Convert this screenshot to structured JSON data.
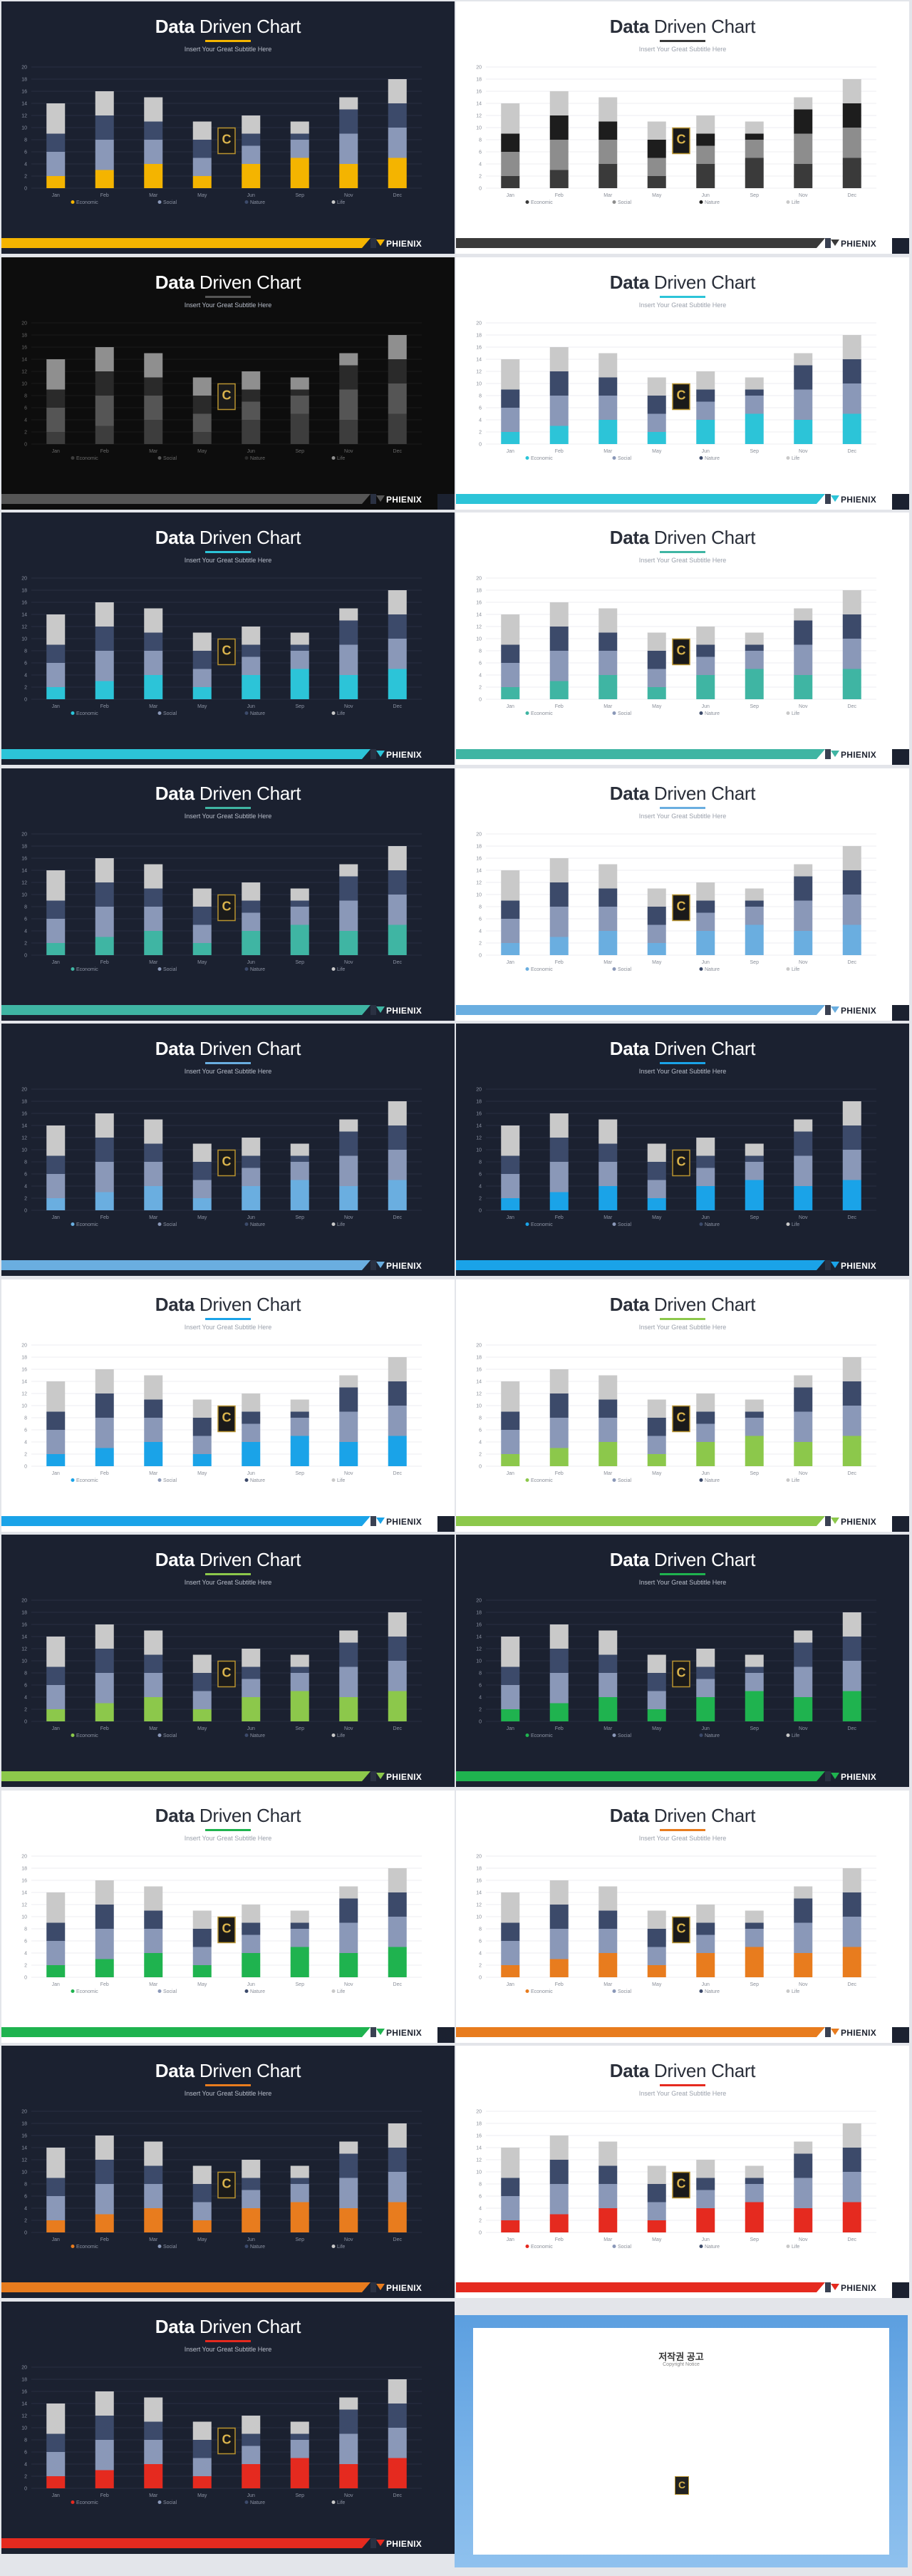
{
  "title_bold": "Data",
  "title_thin": "Driven Chart",
  "subtitle": "Insert Your Great Subtitle Here",
  "brand": "PHIENIX",
  "page_marker": "4",
  "logo_letter": "C",
  "chart_data": {
    "type": "bar",
    "categories": [
      "Jan",
      "Feb",
      "Mar",
      "May",
      "Jun",
      "Sep",
      "Nov",
      "Dec"
    ],
    "yticks": [
      0,
      2,
      4,
      6,
      8,
      10,
      12,
      14,
      16,
      18,
      20
    ],
    "ylim": [
      0,
      20
    ],
    "series": [
      {
        "name": "Economic",
        "values": [
          2,
          3,
          4,
          2,
          4,
          5,
          4,
          5
        ]
      },
      {
        "name": "Social",
        "values": [
          4,
          5,
          4,
          3,
          3,
          3,
          5,
          5
        ]
      },
      {
        "name": "Nature",
        "values": [
          3,
          4,
          3,
          3,
          2,
          1,
          4,
          4
        ]
      },
      {
        "name": "Life",
        "values": [
          5,
          4,
          4,
          3,
          3,
          2,
          2,
          4
        ]
      }
    ],
    "stacked": true,
    "legend": "bottom",
    "grid": true
  },
  "slides": [
    {
      "theme": "dark",
      "accent": "#f4b400",
      "c1": "#f4b400",
      "c2": "#8a98b8",
      "c3": "#3c4a6a",
      "c4": "#c9c9c9"
    },
    {
      "theme": "light",
      "accent": "#3a3a3a",
      "c1": "#3a3a3a",
      "c2": "#8d8d8d",
      "c3": "#1d1d1d",
      "c4": "#c9c9c9"
    },
    {
      "theme": "black",
      "accent": "#555555",
      "c1": "#3d3d3d",
      "c2": "#555555",
      "c3": "#2a2a2a",
      "c4": "#8f8f8f"
    },
    {
      "theme": "light",
      "accent": "#2cc4d8",
      "c1": "#2cc4d8",
      "c2": "#8a98b8",
      "c3": "#3c4a6a",
      "c4": "#c9c9c9"
    },
    {
      "theme": "dark",
      "accent": "#2cc4d8",
      "c1": "#2cc4d8",
      "c2": "#8a98b8",
      "c3": "#3c4a6a",
      "c4": "#c9c9c9"
    },
    {
      "theme": "light",
      "accent": "#3fb5a3",
      "c1": "#3fb5a3",
      "c2": "#8a98b8",
      "c3": "#3c4a6a",
      "c4": "#c9c9c9"
    },
    {
      "theme": "dark",
      "accent": "#3fb5a3",
      "c1": "#3fb5a3",
      "c2": "#8a98b8",
      "c3": "#3c4a6a",
      "c4": "#c9c9c9"
    },
    {
      "theme": "light",
      "accent": "#6aaee0",
      "c1": "#6aaee0",
      "c2": "#8a98b8",
      "c3": "#3c4a6a",
      "c4": "#c9c9c9"
    },
    {
      "theme": "dark",
      "accent": "#6aaee0",
      "c1": "#6aaee0",
      "c2": "#8a98b8",
      "c3": "#3c4a6a",
      "c4": "#c9c9c9"
    },
    {
      "theme": "dark",
      "accent": "#1aa3e8",
      "c1": "#1aa3e8",
      "c2": "#8a98b8",
      "c3": "#3c4a6a",
      "c4": "#c9c9c9"
    },
    {
      "theme": "light",
      "accent": "#1aa3e8",
      "c1": "#1aa3e8",
      "c2": "#8a98b8",
      "c3": "#3c4a6a",
      "c4": "#c9c9c9"
    },
    {
      "theme": "light",
      "accent": "#8cc84b",
      "c1": "#8cc84b",
      "c2": "#8a98b8",
      "c3": "#3c4a6a",
      "c4": "#c9c9c9"
    },
    {
      "theme": "dark",
      "accent": "#8cc84b",
      "c1": "#8cc84b",
      "c2": "#8a98b8",
      "c3": "#3c4a6a",
      "c4": "#c9c9c9"
    },
    {
      "theme": "dark",
      "accent": "#1fb34f",
      "c1": "#1fb34f",
      "c2": "#8a98b8",
      "c3": "#3c4a6a",
      "c4": "#c9c9c9"
    },
    {
      "theme": "light",
      "accent": "#1fb34f",
      "c1": "#1fb34f",
      "c2": "#8a98b8",
      "c3": "#3c4a6a",
      "c4": "#c9c9c9"
    },
    {
      "theme": "light",
      "accent": "#e87c1e",
      "c1": "#e87c1e",
      "c2": "#8a98b8",
      "c3": "#3c4a6a",
      "c4": "#c9c9c9"
    },
    {
      "theme": "dark",
      "accent": "#e87c1e",
      "c1": "#e87c1e",
      "c2": "#8a98b8",
      "c3": "#3c4a6a",
      "c4": "#c9c9c9"
    },
    {
      "theme": "light",
      "accent": "#e52a1f",
      "c1": "#e52a1f",
      "c2": "#8a98b8",
      "c3": "#3c4a6a",
      "c4": "#c9c9c9"
    },
    {
      "theme": "dark",
      "accent": "#e52a1f",
      "c1": "#e52a1f",
      "c2": "#8a98b8",
      "c3": "#3c4a6a",
      "c4": "#c9c9c9"
    }
  ],
  "notice": {
    "title": "저작권 공고",
    "subtitle": "Copyright Notice",
    "intro": "",
    "items": []
  }
}
